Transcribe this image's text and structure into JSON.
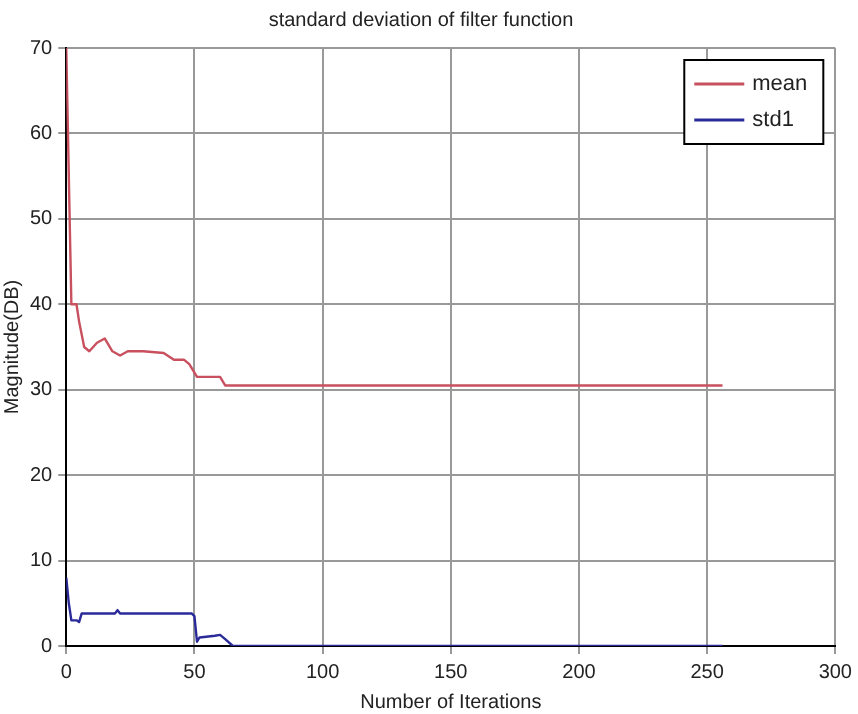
{
  "chart_data": {
    "type": "line",
    "title": "standard deviation of filter function",
    "xlabel": "Number of Iterations",
    "ylabel": "Magnitude(DB)",
    "xlim": [
      0,
      300
    ],
    "xticks": [
      0,
      50,
      100,
      150,
      200,
      250,
      300
    ],
    "ylim": [
      0,
      70
    ],
    "yticks": [
      0,
      10,
      20,
      30,
      40,
      50,
      60,
      70
    ],
    "grid": true,
    "legend": "top right",
    "marker": "none",
    "line_style": "solid",
    "series": [
      {
        "name": "mean",
        "color": "#c8505f",
        "x": [
          0,
          1,
          2,
          4,
          5,
          7,
          9,
          12,
          15,
          18,
          21,
          24,
          30,
          38,
          42,
          46,
          48,
          50,
          51,
          60,
          62,
          63,
          256
        ],
        "values": [
          70,
          55,
          40,
          40,
          38,
          35,
          34.5,
          35.5,
          36,
          34.5,
          34,
          34.5,
          34.5,
          34.3,
          33.5,
          33.5,
          33,
          32,
          31.5,
          31.5,
          30.5,
          30.5,
          30.5
        ]
      },
      {
        "name": "std1",
        "color": "#2a2a9a",
        "x": [
          0,
          1,
          2,
          4,
          5,
          6,
          19,
          20,
          21,
          49,
          50,
          51,
          52,
          58,
          60,
          62,
          65,
          256
        ],
        "values": [
          8,
          5,
          3,
          3,
          2.8,
          3.8,
          3.8,
          4.2,
          3.8,
          3.8,
          3.5,
          0.5,
          1,
          1.2,
          1.3,
          0.8,
          0,
          0
        ]
      }
    ]
  }
}
